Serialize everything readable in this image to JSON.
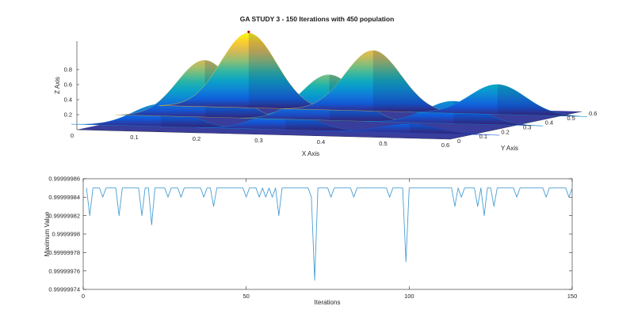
{
  "figure": {
    "title": "GA STUDY 3 - 150 Iterations with 450 population"
  },
  "chart_data": [
    {
      "type": "surface",
      "xlabel": "X Axis",
      "ylabel": "Y Axis",
      "zlabel": "Z Axis",
      "xlim": [
        0,
        0.6
      ],
      "ylim": [
        0,
        0.6
      ],
      "zlim": [
        0,
        0.9
      ],
      "x_ticks": [
        "0",
        "0.1",
        "0.2",
        "0.3",
        "0.4",
        "0.5",
        "0.6"
      ],
      "y_ticks": [
        "0",
        "0.1",
        "0.2",
        "0.3",
        "0.4",
        "0.5",
        "0.6"
      ],
      "z_ticks": [
        "0.2",
        "0.4",
        "0.6",
        "0.8"
      ],
      "colormap": "parula",
      "peaks": [
        {
          "x": 0.1,
          "y": 0.1,
          "z": 1.0
        },
        {
          "x": 0.1,
          "y": 0.3,
          "z": 0.76
        },
        {
          "x": 0.1,
          "y": 0.5,
          "z": 0.3
        },
        {
          "x": 0.3,
          "y": 0.1,
          "z": 0.81
        },
        {
          "x": 0.3,
          "y": 0.3,
          "z": 0.61
        },
        {
          "x": 0.3,
          "y": 0.5,
          "z": 0.25
        },
        {
          "x": 0.5,
          "y": 0.1,
          "z": 0.4
        },
        {
          "x": 0.5,
          "y": 0.3,
          "z": 0.3
        },
        {
          "x": 0.5,
          "y": 0.5,
          "z": 0.12
        }
      ],
      "best_point": {
        "x": 0.1,
        "y": 0.1,
        "z": 1.0,
        "color": "#b3000b"
      }
    },
    {
      "type": "line",
      "xlabel": "Iterations",
      "ylabel": "Maximum Value",
      "xlim": [
        0,
        150
      ],
      "ylim": [
        0.99999974,
        0.99999986
      ],
      "x_ticks": [
        "0",
        "50",
        "100",
        "150"
      ],
      "y_ticks": [
        "0.99999974",
        "0.99999976",
        "0.99999978",
        "0.9999998",
        "0.99999982",
        "0.99999984",
        "0.99999986"
      ],
      "grid": false,
      "series": [
        {
          "color": "#4a9ed3",
          "x": [
            1,
            2,
            3,
            4,
            5,
            6,
            7,
            8,
            9,
            10,
            11,
            12,
            13,
            14,
            15,
            16,
            17,
            18,
            19,
            20,
            21,
            22,
            23,
            24,
            25,
            26,
            27,
            28,
            29,
            30,
            31,
            32,
            33,
            34,
            35,
            36,
            37,
            38,
            39,
            40,
            41,
            42,
            43,
            44,
            45,
            46,
            47,
            48,
            49,
            50,
            51,
            52,
            53,
            54,
            55,
            56,
            57,
            58,
            59,
            60,
            61,
            62,
            63,
            64,
            65,
            66,
            67,
            68,
            69,
            70,
            71,
            72,
            73,
            74,
            75,
            76,
            77,
            78,
            79,
            80,
            81,
            82,
            83,
            84,
            85,
            86,
            87,
            88,
            89,
            90,
            91,
            92,
            93,
            94,
            95,
            96,
            97,
            98,
            99,
            100,
            101,
            102,
            103,
            104,
            105,
            106,
            107,
            108,
            109,
            110,
            111,
            112,
            113,
            114,
            115,
            116,
            117,
            118,
            119,
            120,
            121,
            122,
            123,
            124,
            125,
            126,
            127,
            128,
            129,
            130,
            131,
            132,
            133,
            134,
            135,
            136,
            137,
            138,
            139,
            140,
            141,
            142,
            143,
            144,
            145,
            146,
            147,
            148,
            149,
            150
          ],
          "y": [
            0.99999985,
            0.99999982,
            0.99999985,
            0.99999985,
            0.99999985,
            0.99999984,
            0.99999985,
            0.99999985,
            0.99999985,
            0.99999985,
            0.99999982,
            0.99999985,
            0.99999985,
            0.99999985,
            0.99999985,
            0.99999985,
            0.99999985,
            0.99999982,
            0.99999985,
            0.99999985,
            0.99999981,
            0.99999985,
            0.99999985,
            0.99999985,
            0.99999985,
            0.99999984,
            0.99999985,
            0.99999985,
            0.99999985,
            0.99999984,
            0.99999985,
            0.99999985,
            0.99999985,
            0.99999985,
            0.99999985,
            0.99999985,
            0.99999984,
            0.99999985,
            0.99999985,
            0.99999983,
            0.99999985,
            0.99999985,
            0.99999985,
            0.99999985,
            0.99999985,
            0.99999985,
            0.99999985,
            0.99999985,
            0.99999985,
            0.99999984,
            0.99999985,
            0.99999985,
            0.99999985,
            0.99999984,
            0.99999985,
            0.99999984,
            0.99999985,
            0.99999984,
            0.99999985,
            0.99999982,
            0.99999985,
            0.99999985,
            0.99999985,
            0.99999985,
            0.99999985,
            0.99999985,
            0.99999985,
            0.99999985,
            0.99999985,
            0.99999984,
            0.99999975,
            0.99999985,
            0.99999985,
            0.99999985,
            0.99999985,
            0.99999984,
            0.99999985,
            0.99999985,
            0.99999985,
            0.99999985,
            0.99999985,
            0.99999985,
            0.99999984,
            0.99999985,
            0.99999985,
            0.99999985,
            0.99999985,
            0.99999985,
            0.99999985,
            0.99999985,
            0.99999985,
            0.99999985,
            0.99999985,
            0.99999984,
            0.99999985,
            0.99999985,
            0.99999985,
            0.99999985,
            0.99999977,
            0.99999985,
            0.99999985,
            0.99999985,
            0.99999985,
            0.99999985,
            0.99999985,
            0.99999985,
            0.99999985,
            0.99999985,
            0.99999985,
            0.99999985,
            0.99999985,
            0.99999985,
            0.99999985,
            0.99999983,
            0.99999985,
            0.99999984,
            0.99999985,
            0.99999985,
            0.99999985,
            0.99999985,
            0.99999983,
            0.99999985,
            0.99999982,
            0.99999985,
            0.99999985,
            0.99999983,
            0.99999985,
            0.99999985,
            0.99999985,
            0.99999985,
            0.99999985,
            0.99999985,
            0.99999984,
            0.99999985,
            0.99999985,
            0.99999985,
            0.99999985,
            0.99999985,
            0.99999985,
            0.99999985,
            0.99999985,
            0.99999984,
            0.99999985,
            0.99999985,
            0.99999985,
            0.99999985,
            0.99999985,
            0.99999985,
            0.99999984,
            0.99999985
          ]
        }
      ]
    }
  ]
}
